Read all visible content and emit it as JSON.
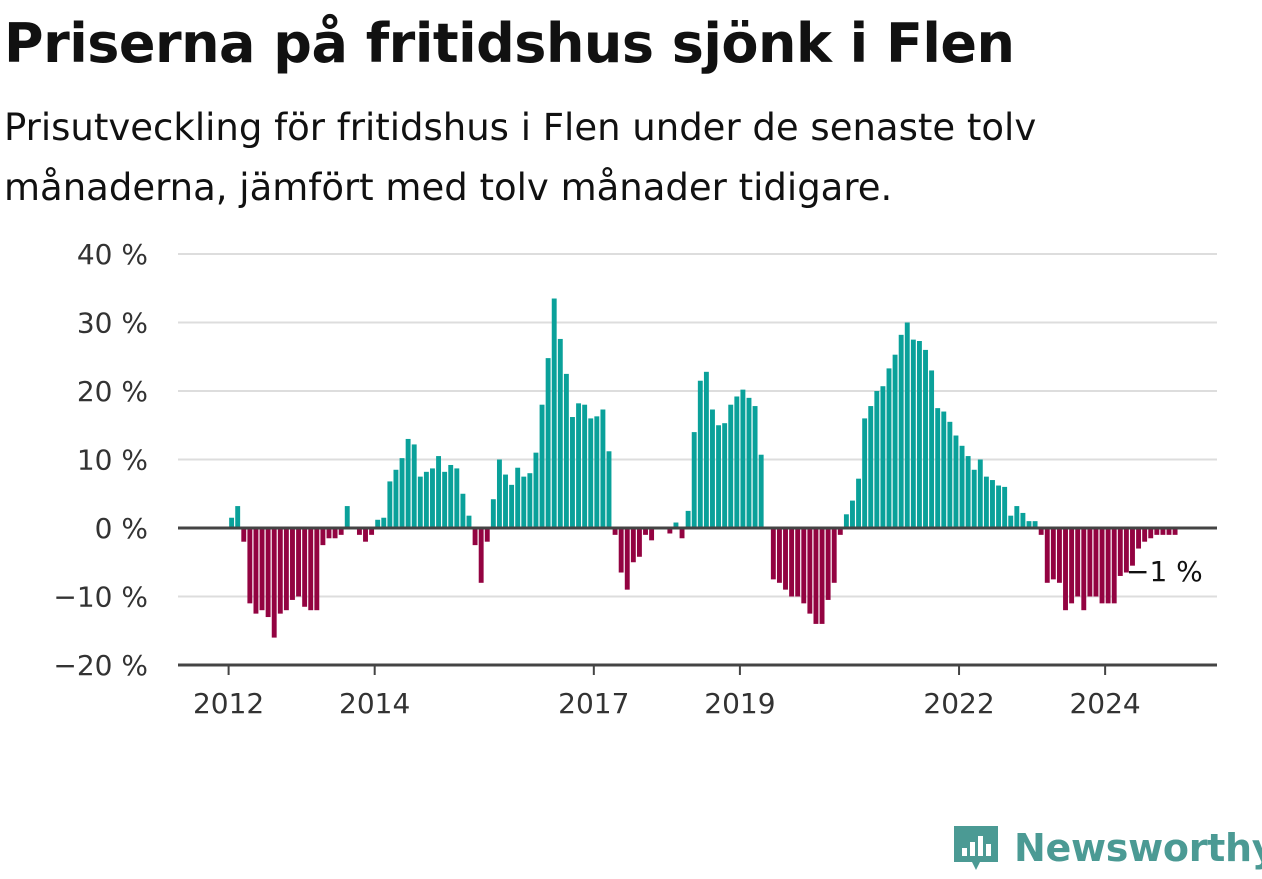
{
  "header": {
    "title": "Priserna på fritidshus sjönk i Flen",
    "subtitle": "Prisutveckling för fritidshus i Flen under de senaste tolv månaderna, jämfört med tolv månader tidigare."
  },
  "brand": {
    "name": "Newsworthy",
    "icon": "newsworthy-logo-icon",
    "color": "#4b9a94"
  },
  "colors": {
    "positive": "#0aa19a",
    "negative": "#930341",
    "grid": "#dddddd",
    "axis": "#444444"
  },
  "chart_data": {
    "type": "bar",
    "title": "Priserna på fritidshus sjönk i Flen",
    "subtitle": "Prisutveckling för fritidshus i Flen under de senaste tolv månaderna, jämfört med tolv månader tidigare.",
    "xlabel": "",
    "ylabel": "",
    "ylim": [
      -20,
      40
    ],
    "yticks": [
      40,
      30,
      20,
      10,
      0,
      -10,
      -20
    ],
    "ytick_labels": [
      "40 %",
      "30 %",
      "20 %",
      "10 %",
      "0 %",
      "−10 %",
      "−20 %"
    ],
    "xticks": [
      {
        "label": "2012",
        "x": "2012-01"
      },
      {
        "label": "2014",
        "x": "2014-01"
      },
      {
        "label": "2017",
        "x": "2017-01"
      },
      {
        "label": "2019",
        "x": "2019-01"
      },
      {
        "label": "2022",
        "x": "2022-01"
      },
      {
        "label": "2024",
        "x": "2024-01"
      }
    ],
    "x": [
      "2012-01",
      "2012-02",
      "2012-03",
      "2012-04",
      "2012-05",
      "2012-06",
      "2012-07",
      "2012-08",
      "2012-09",
      "2012-10",
      "2012-11",
      "2012-12",
      "2013-01",
      "2013-02",
      "2013-03",
      "2013-04",
      "2013-05",
      "2013-06",
      "2013-07",
      "2013-08",
      "2013-09",
      "2013-10",
      "2013-11",
      "2013-12",
      "2014-01",
      "2014-02",
      "2014-03",
      "2014-04",
      "2014-05",
      "2014-06",
      "2014-07",
      "2014-08",
      "2014-09",
      "2014-10",
      "2014-11",
      "2014-12",
      "2015-01",
      "2015-02",
      "2015-03",
      "2015-04",
      "2015-05",
      "2015-06",
      "2015-07",
      "2015-08",
      "2015-09",
      "2015-10",
      "2015-11",
      "2015-12",
      "2016-01",
      "2016-02",
      "2016-03",
      "2016-04",
      "2016-05",
      "2016-06",
      "2016-07",
      "2016-08",
      "2016-09",
      "2016-10",
      "2016-11",
      "2016-12",
      "2017-01",
      "2017-02",
      "2017-03",
      "2017-04",
      "2017-05",
      "2017-06",
      "2017-07",
      "2017-08",
      "2017-09",
      "2017-10",
      "2017-11",
      "2017-12",
      "2018-01",
      "2018-02",
      "2018-03",
      "2018-04",
      "2018-05",
      "2018-06",
      "2018-07",
      "2018-08",
      "2018-09",
      "2018-10",
      "2018-11",
      "2018-12",
      "2019-01",
      "2019-02",
      "2019-03",
      "2019-04",
      "2019-05",
      "2019-06",
      "2019-07",
      "2019-08",
      "2019-09",
      "2019-10",
      "2019-11",
      "2019-12",
      "2020-01",
      "2020-02",
      "2020-03",
      "2020-04",
      "2020-05",
      "2020-06",
      "2020-07",
      "2020-08",
      "2020-09",
      "2020-10",
      "2020-11",
      "2020-12",
      "2021-01",
      "2021-02",
      "2021-03",
      "2021-04",
      "2021-05",
      "2021-06",
      "2021-07",
      "2021-08",
      "2021-09",
      "2021-10",
      "2021-11",
      "2021-12",
      "2022-01",
      "2022-02",
      "2022-03",
      "2022-04",
      "2022-05",
      "2022-06",
      "2022-07",
      "2022-08",
      "2022-09",
      "2022-10",
      "2022-11",
      "2022-12",
      "2023-01",
      "2023-02",
      "2023-03",
      "2023-04",
      "2023-05",
      "2023-06",
      "2023-07",
      "2023-08",
      "2023-09",
      "2023-10",
      "2023-11",
      "2023-12",
      "2024-01",
      "2024-02",
      "2024-03",
      "2024-04",
      "2024-05",
      "2024-06",
      "2024-07",
      "2024-08",
      "2024-09",
      "2024-10",
      "2024-11",
      "2024-12"
    ],
    "values": [
      1.5,
      3.2,
      -2,
      -11,
      -12.5,
      -12,
      -13,
      -16,
      -12.5,
      -12,
      -10.5,
      -10,
      -11.5,
      -12,
      -12,
      -2.5,
      -1.5,
      -1.5,
      -1,
      3.2,
      0,
      -1,
      -2,
      -1,
      1.2,
      1.5,
      6.8,
      8.5,
      10.2,
      13,
      12.2,
      7.5,
      8.2,
      8.7,
      10.5,
      8.2,
      9.2,
      8.7,
      5,
      1.8,
      -2.5,
      -8,
      -2,
      4.2,
      10,
      7.8,
      6.3,
      8.8,
      7.5,
      8,
      11,
      18,
      24.8,
      33.5,
      27.6,
      22.5,
      16.2,
      18.2,
      18,
      16,
      16.3,
      17.3,
      11.2,
      -1,
      -6.5,
      -9,
      -5,
      -4.2,
      -1,
      -1.8,
      0,
      0,
      -0.8,
      0.8,
      -1.5,
      2.5,
      14,
      21.5,
      22.8,
      17.3,
      15,
      15.3,
      18,
      19.2,
      20.2,
      19,
      17.8,
      10.7,
      0,
      -7.5,
      -8,
      -9,
      -10,
      -10,
      -11,
      -12.5,
      -14,
      -14,
      -10.5,
      -8,
      -1,
      2,
      4,
      7.2,
      16,
      17.8,
      20,
      20.7,
      23.3,
      25.3,
      28.2,
      30,
      27.5,
      27.3,
      26,
      23,
      17.5,
      17,
      15.5,
      13.5,
      12,
      10.5,
      8.5,
      10,
      7.5,
      7,
      6.2,
      6,
      1.8,
      3.2,
      2.2,
      1,
      1,
      -1,
      -8,
      -7.5,
      -8,
      -12,
      -11,
      -10,
      -12,
      -10,
      -10,
      -11,
      -11,
      -11,
      -7,
      -6.5,
      -5.5,
      -3,
      -2,
      -1.5,
      -1,
      -1,
      -1,
      -1
    ],
    "end_label": "−1 %",
    "grid": true,
    "legend": "none"
  }
}
